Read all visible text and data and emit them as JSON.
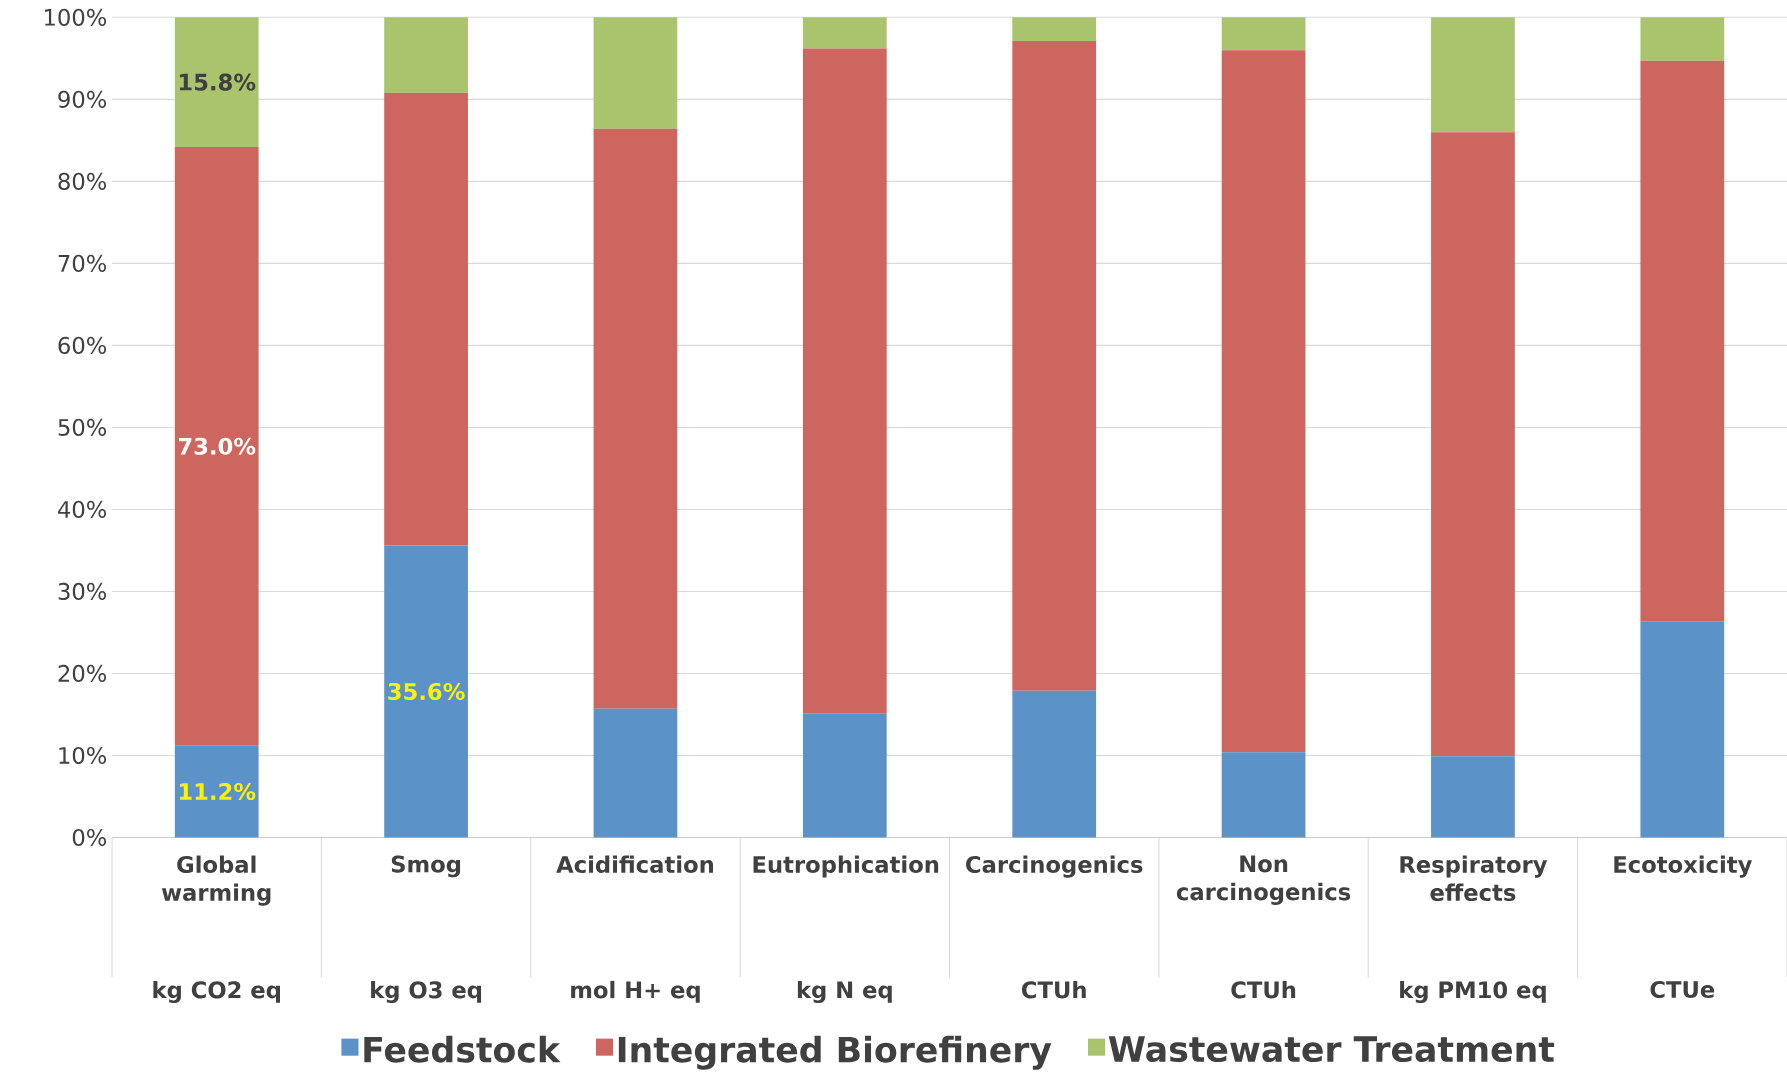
{
  "chart_data": {
    "type": "bar",
    "stacked": true,
    "categories": [
      "Global warming",
      "Smog",
      "Acidification",
      "Eutrophication",
      "Carcinogenics",
      "Non carcinogenics",
      "Respiratory effects",
      "Ecotoxicity"
    ],
    "annotations": [
      "kg CO2 eq",
      "kg O3 eq",
      "mol H+ eq",
      "kg N eq",
      "CTUh",
      "CTUh",
      "kg PM10 eq",
      "CTUe"
    ],
    "series": [
      {
        "name": "Feedstock",
        "color": "#5b93c8",
        "values": [
          11.2,
          35.6,
          15.7,
          15.1,
          17.9,
          10.4,
          9.9,
          26.3
        ],
        "value_labels": [
          "11.2%",
          "35.6%",
          null,
          null,
          null,
          null,
          null,
          null
        ]
      },
      {
        "name": "Integrated Biorefinery",
        "color": "#cd665f",
        "values": [
          73.0,
          55.2,
          70.7,
          81.1,
          79.2,
          85.6,
          76.1,
          68.4
        ],
        "value_labels": [
          "73.0%",
          null,
          null,
          null,
          null,
          null,
          null,
          null
        ]
      },
      {
        "name": "Wastewater Treatment",
        "color": "#a9c46c",
        "values": [
          15.8,
          9.2,
          13.6,
          3.8,
          2.9,
          4.0,
          14.0,
          5.3
        ],
        "value_labels": [
          "15.8%",
          null,
          null,
          null,
          null,
          null,
          null,
          null
        ]
      }
    ],
    "ylim": [
      0,
      100
    ],
    "yticks": [
      {
        "value": 0,
        "label": "0%"
      },
      {
        "value": 10,
        "label": "10%"
      },
      {
        "value": 20,
        "label": "20%"
      },
      {
        "value": 30,
        "label": "30%"
      },
      {
        "value": 40,
        "label": "40%"
      },
      {
        "value": 50,
        "label": "50%"
      },
      {
        "value": 60,
        "label": "60%"
      },
      {
        "value": 70,
        "label": "70%"
      },
      {
        "value": 80,
        "label": "80%"
      },
      {
        "value": 90,
        "label": "90%"
      },
      {
        "value": 100,
        "label": "100%"
      }
    ],
    "grid": "y",
    "legend": "bottom"
  }
}
